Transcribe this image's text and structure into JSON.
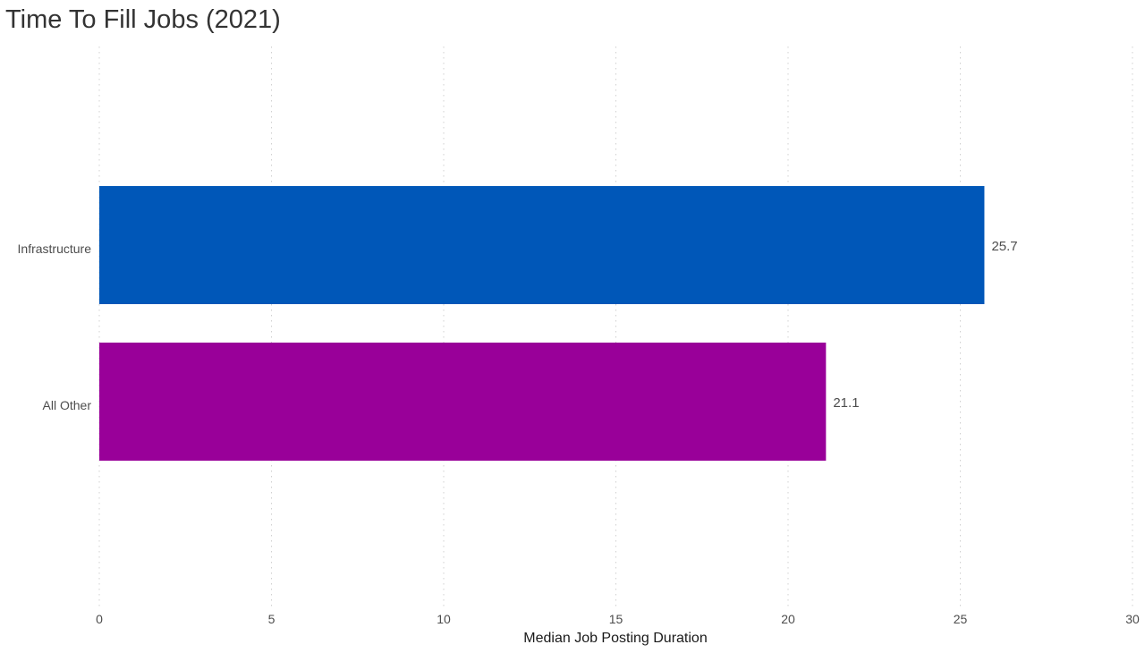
{
  "chart_data": {
    "type": "bar",
    "orientation": "horizontal",
    "title": "Time To Fill Jobs (2021)",
    "xlabel": "Median Job Posting Duration",
    "ylabel": "",
    "categories": [
      "Infrastructure",
      "All Other"
    ],
    "values": [
      25.7,
      21.1
    ],
    "value_labels": [
      "25.7",
      "21.1"
    ],
    "colors": [
      "#0057b8",
      "#990099"
    ],
    "xlim": [
      0,
      30
    ],
    "xticks": [
      0,
      5,
      10,
      15,
      20,
      25,
      30
    ],
    "xtick_labels": [
      "0",
      "5",
      "10",
      "15",
      "20",
      "25",
      "30"
    ],
    "grid": "vertical-dotted",
    "legend": "none"
  }
}
